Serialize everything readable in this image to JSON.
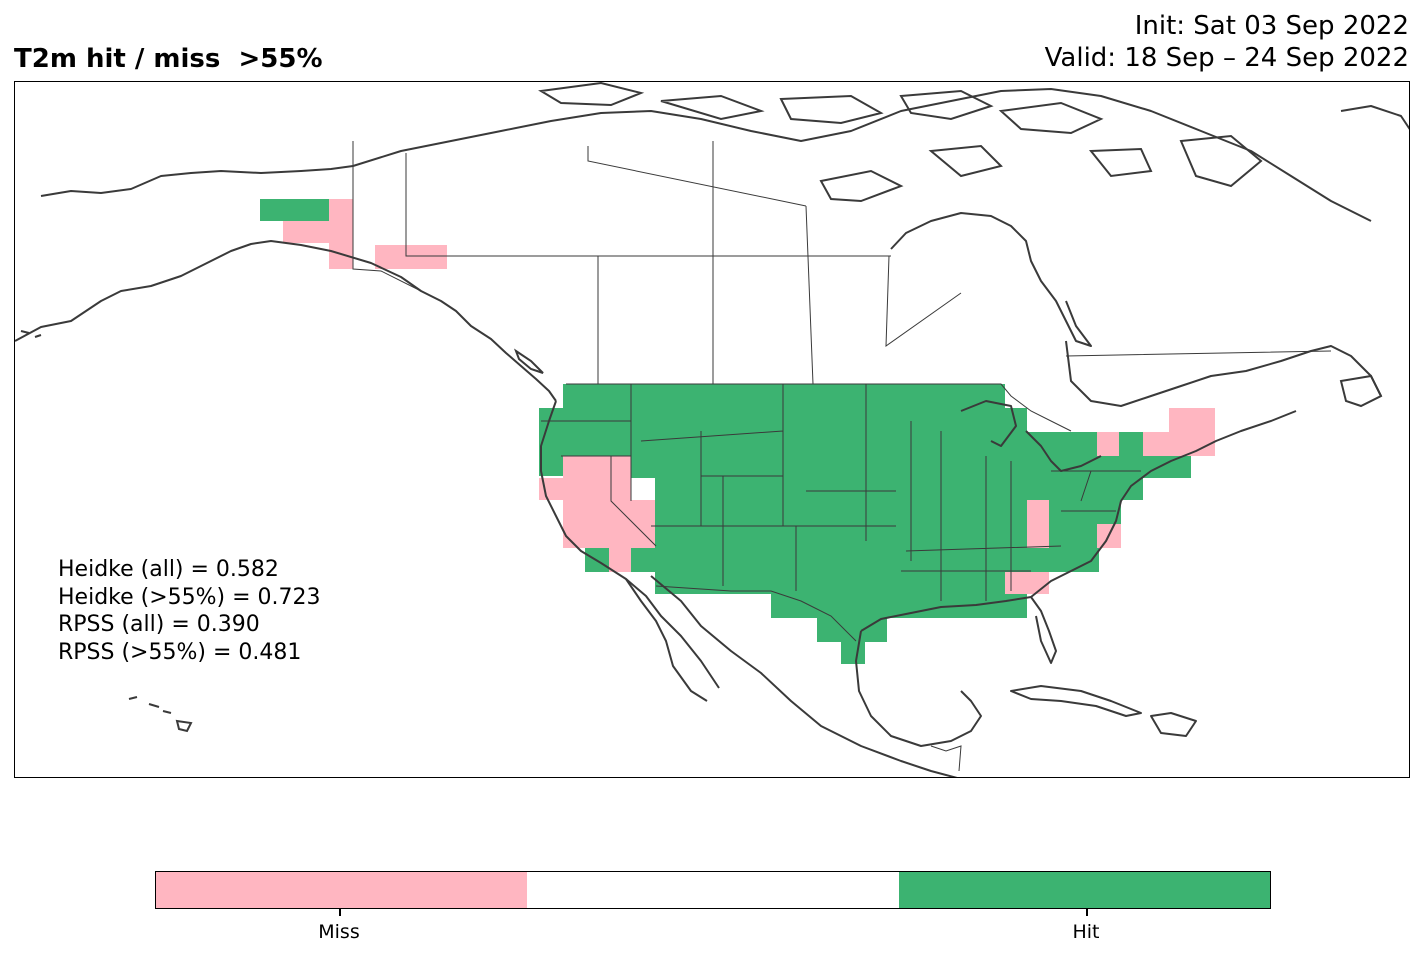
{
  "title": {
    "left": "T2m hit / miss  >55%",
    "init": "Init: Sat 03 Sep 2022",
    "valid": "Valid: 18 Sep – 24 Sep 2022"
  },
  "scores": [
    "Heidke (all) = 0.582",
    "Heidke (>55%) = 0.723",
    "RPSS (all) = 0.390",
    "RPSS (>55%) = 0.481"
  ],
  "colorbar": {
    "colors": [
      "#ffb6c1",
      "#ffffff",
      "#3cb371"
    ],
    "labels": [
      "Miss",
      "Hit"
    ]
  },
  "legend_colors": {
    "miss": "#ffb6c1",
    "hit": "#3cb371",
    "coastline": "#3a3a3a"
  }
}
